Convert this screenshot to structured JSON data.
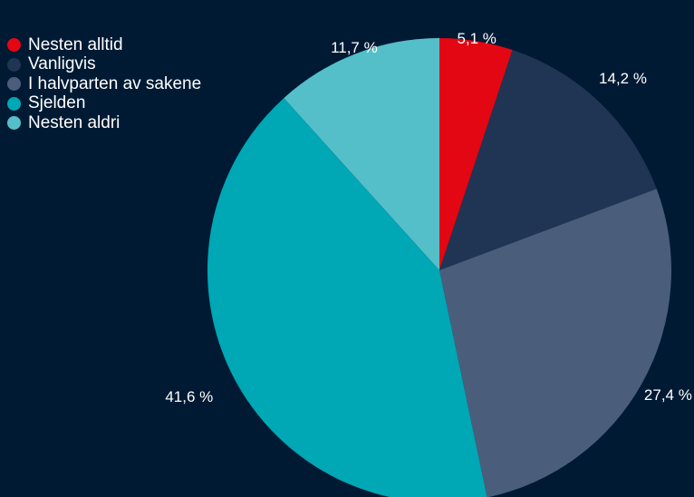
{
  "chart_data": {
    "type": "pie",
    "categories": [
      "Nesten alltid",
      "Vanligvis",
      "I halvparten av sakene",
      "Sjelden",
      "Nesten aldri"
    ],
    "values": [
      5.1,
      14.2,
      27.4,
      41.6,
      11.7
    ],
    "labels": [
      "5,1 %",
      "14,2 %",
      "27,4 %",
      "41,6 %",
      "11,7 %"
    ],
    "colors": [
      "#e30613",
      "#1f3553",
      "#4a5e7c",
      "#00a7b5",
      "#55bfc9"
    ],
    "start_angle_deg": 0,
    "direction": "clockwise",
    "legend_position": "top-left",
    "title": ""
  },
  "page": {
    "background": "#001a33"
  }
}
